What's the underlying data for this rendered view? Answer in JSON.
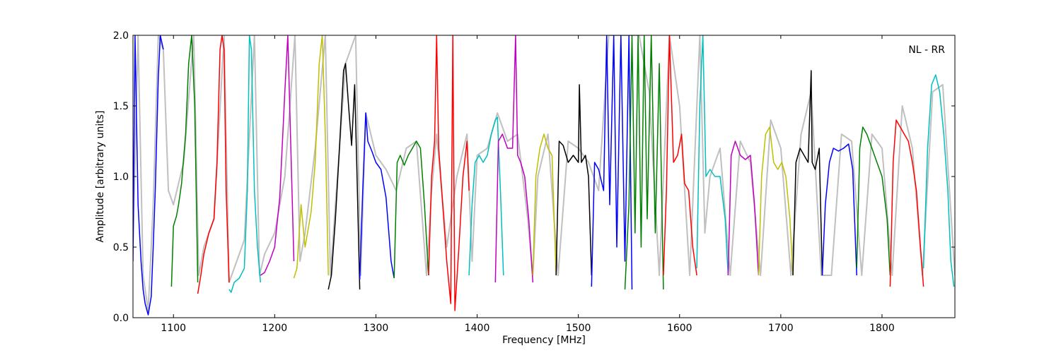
{
  "chart_data": {
    "type": "line",
    "title": "",
    "xlabel": "Frequency [MHz]",
    "ylabel": "Amplitude [arbitrary units]",
    "xlim": [
      1060,
      1872
    ],
    "ylim": [
      0,
      2.0
    ],
    "xticks": [
      1100,
      1200,
      1300,
      1400,
      1500,
      1600,
      1700,
      1800
    ],
    "xtick_labels": [
      "1100",
      "1200",
      "1300",
      "1400",
      "1500",
      "1600",
      "1700",
      "1800"
    ],
    "yticks": [
      0.0,
      0.5,
      1.0,
      1.5,
      2.0
    ],
    "ytick_labels": [
      "0.0",
      "0.5",
      "1.0",
      "1.5",
      "2.0"
    ],
    "grid": false,
    "annotation": "NL - RR",
    "background_color": "#c0c0c0",
    "background": {
      "x": [
        1060,
        1065,
        1070,
        1075,
        1080,
        1085,
        1090,
        1095,
        1100,
        1110,
        1120,
        1125,
        1130,
        1140,
        1150,
        1155,
        1160,
        1170,
        1180,
        1185,
        1190,
        1200,
        1210,
        1220,
        1225,
        1230,
        1240,
        1250,
        1255,
        1260,
        1270,
        1280,
        1285,
        1290,
        1300,
        1310,
        1320,
        1330,
        1340,
        1350,
        1355,
        1360,
        1370,
        1380,
        1390,
        1395,
        1400,
        1410,
        1420,
        1430,
        1440,
        1450,
        1455,
        1460,
        1470,
        1480,
        1490,
        1500,
        1510,
        1520,
        1530,
        1540,
        1550,
        1560,
        1570,
        1580,
        1590,
        1600,
        1610,
        1620,
        1625,
        1630,
        1640,
        1650,
        1660,
        1670,
        1680,
        1690,
        1700,
        1710,
        1720,
        1730,
        1740,
        1750,
        1760,
        1770,
        1780,
        1790,
        1800,
        1810,
        1820,
        1830,
        1840,
        1850,
        1860,
        1872
      ],
      "y": [
        0.5,
        2.0,
        0.3,
        0.05,
        0.8,
        2.0,
        1.9,
        0.9,
        0.8,
        1.1,
        2.0,
        0.3,
        0.5,
        0.7,
        2.0,
        0.25,
        0.35,
        0.55,
        2.0,
        0.3,
        0.45,
        0.6,
        1.0,
        2.0,
        0.4,
        0.6,
        1.2,
        2.0,
        0.3,
        0.8,
        1.8,
        2.0,
        0.3,
        1.45,
        1.15,
        1.05,
        0.9,
        1.2,
        1.25,
        0.3,
        0.9,
        1.3,
        0.5,
        1.0,
        1.3,
        0.4,
        1.15,
        1.2,
        1.45,
        1.25,
        1.3,
        0.7,
        0.3,
        1.0,
        1.3,
        0.3,
        1.25,
        1.2,
        1.1,
        0.9,
        2.0,
        2.0,
        2.0,
        2.0,
        1.6,
        0.3,
        2.0,
        1.5,
        0.3,
        2.0,
        0.6,
        1.0,
        1.2,
        0.3,
        1.25,
        1.1,
        0.3,
        1.4,
        1.2,
        0.3,
        1.3,
        1.6,
        0.3,
        0.3,
        1.3,
        1.25,
        0.3,
        1.3,
        1.2,
        0.3,
        1.5,
        1.2,
        0.3,
        1.6,
        1.65,
        0.3
      ]
    },
    "series": [
      {
        "color": "#0000ff",
        "x": [
          1060,
          1062,
          1065,
          1068,
          1070,
          1072,
          1075,
          1078,
          1080,
          1082,
          1085,
          1087,
          1090
        ],
        "y": [
          0.4,
          2.0,
          0.8,
          0.4,
          0.2,
          0.1,
          0.02,
          0.15,
          0.5,
          0.9,
          1.7,
          2.0,
          1.9
        ]
      },
      {
        "color": "#008000",
        "x": [
          1098,
          1100,
          1103,
          1105,
          1108,
          1112,
          1115,
          1118,
          1121,
          1124
        ],
        "y": [
          0.22,
          0.65,
          0.72,
          0.8,
          0.95,
          1.3,
          1.8,
          2.0,
          1.5,
          0.25
        ]
      },
      {
        "color": "#ff0000",
        "x": [
          1124,
          1127,
          1130,
          1135,
          1140,
          1143,
          1146,
          1148,
          1150,
          1152,
          1155
        ],
        "y": [
          0.17,
          0.3,
          0.45,
          0.6,
          0.7,
          1.1,
          1.9,
          2.0,
          1.9,
          0.9,
          0.25
        ]
      },
      {
        "color": "#00bfbf",
        "x": [
          1155,
          1157,
          1160,
          1165,
          1170,
          1173,
          1175,
          1177,
          1180,
          1183,
          1186
        ],
        "y": [
          0.2,
          0.18,
          0.25,
          0.28,
          0.35,
          0.9,
          2.0,
          1.9,
          0.9,
          0.5,
          0.25
        ]
      },
      {
        "color": "#bf00bf",
        "x": [
          1186,
          1190,
          1195,
          1200,
          1205,
          1210,
          1213,
          1216,
          1219
        ],
        "y": [
          0.3,
          0.32,
          0.4,
          0.5,
          0.85,
          1.6,
          2.0,
          1.2,
          0.4
        ]
      },
      {
        "color": "#bfbf00",
        "x": [
          1219,
          1222,
          1226,
          1230,
          1236,
          1240,
          1244,
          1247,
          1250,
          1253
        ],
        "y": [
          0.28,
          0.35,
          0.8,
          0.5,
          0.75,
          1.1,
          1.8,
          2.0,
          1.3,
          0.3
        ]
      },
      {
        "color": "#000000",
        "x": [
          1253,
          1256,
          1260,
          1264,
          1268,
          1270,
          1273,
          1276,
          1279,
          1281,
          1284
        ],
        "y": [
          0.2,
          0.3,
          0.7,
          1.2,
          1.75,
          1.8,
          1.5,
          1.22,
          1.65,
          1.1,
          0.2
        ]
      },
      {
        "color": "#0000ff",
        "x": [
          1284,
          1287,
          1290,
          1292,
          1296,
          1300,
          1305,
          1310,
          1315,
          1318
        ],
        "y": [
          0.27,
          0.9,
          1.45,
          1.25,
          1.18,
          1.1,
          1.05,
          0.85,
          0.4,
          0.28
        ]
      },
      {
        "color": "#008000",
        "x": [
          1318,
          1321,
          1324,
          1328,
          1332,
          1336,
          1340,
          1344,
          1348,
          1352
        ],
        "y": [
          0.28,
          1.1,
          1.15,
          1.08,
          1.15,
          1.2,
          1.25,
          1.2,
          0.8,
          0.3
        ]
      },
      {
        "color": "#ff0000",
        "x": [
          1352,
          1355,
          1358,
          1360,
          1362,
          1366,
          1370,
          1374,
          1376,
          1378,
          1382,
          1386,
          1390,
          1392
        ],
        "y": [
          0.3,
          1.0,
          1.25,
          2.0,
          1.2,
          0.8,
          0.4,
          0.1,
          2.0,
          0.05,
          0.5,
          1.0,
          1.25,
          0.9
        ]
      },
      {
        "color": "#00bfbf",
        "x": [
          1392,
          1395,
          1398,
          1402,
          1406,
          1410,
          1414,
          1418,
          1420,
          1423,
          1426
        ],
        "y": [
          0.3,
          0.8,
          1.1,
          1.15,
          1.1,
          1.15,
          1.3,
          1.4,
          1.42,
          0.9,
          0.3
        ]
      },
      {
        "color": "#bf00bf",
        "x": [
          1418,
          1421,
          1425,
          1430,
          1435,
          1438,
          1440,
          1443,
          1447,
          1451,
          1455
        ],
        "y": [
          0.25,
          1.25,
          1.3,
          1.2,
          1.2,
          2.0,
          1.15,
          1.1,
          1.0,
          0.7,
          0.25
        ]
      },
      {
        "color": "#bfbf00",
        "x": [
          1455,
          1458,
          1462,
          1466,
          1470,
          1474,
          1478
        ],
        "y": [
          0.3,
          1.0,
          1.2,
          1.3,
          1.2,
          1.15,
          0.3
        ]
      },
      {
        "color": "#000000",
        "x": [
          1478,
          1481,
          1485,
          1490,
          1495,
          1500,
          1501,
          1503,
          1507,
          1510,
          1513
        ],
        "y": [
          0.3,
          1.25,
          1.22,
          1.1,
          1.15,
          1.1,
          1.65,
          1.1,
          1.15,
          1.0,
          0.3
        ]
      },
      {
        "color": "#0000ff",
        "x": [
          1513,
          1516,
          1520,
          1525,
          1528,
          1531,
          1535,
          1538,
          1542,
          1546,
          1550,
          1553
        ],
        "y": [
          0.22,
          1.1,
          1.05,
          0.9,
          2.0,
          0.8,
          2.0,
          0.5,
          2.0,
          0.4,
          2.0,
          0.2
        ]
      },
      {
        "color": "#008000",
        "x": [
          1546,
          1550,
          1553,
          1556,
          1559,
          1562,
          1565,
          1568,
          1572,
          1576,
          1580,
          1584
        ],
        "y": [
          0.2,
          0.8,
          2.0,
          0.6,
          2.0,
          0.5,
          2.0,
          0.7,
          2.0,
          0.6,
          1.8,
          0.2
        ]
      },
      {
        "color": "#ff0000",
        "x": [
          1584,
          1587,
          1590,
          1594,
          1598,
          1602,
          1605,
          1609,
          1613,
          1617
        ],
        "y": [
          0.3,
          0.9,
          2.0,
          1.1,
          1.15,
          1.3,
          0.95,
          0.9,
          0.5,
          0.3
        ]
      },
      {
        "color": "#00bfbf",
        "x": [
          1617,
          1620,
          1623,
          1626,
          1630,
          1635,
          1640,
          1645,
          1648
        ],
        "y": [
          0.35,
          1.5,
          2.0,
          1.0,
          1.05,
          1.0,
          1.0,
          0.7,
          0.3
        ]
      },
      {
        "color": "#bf00bf",
        "x": [
          1648,
          1651,
          1655,
          1660,
          1665,
          1670,
          1674,
          1678
        ],
        "y": [
          0.3,
          1.15,
          1.25,
          1.15,
          1.12,
          1.15,
          0.8,
          0.3
        ]
      },
      {
        "color": "#bfbf00",
        "x": [
          1678,
          1681,
          1685,
          1689,
          1693,
          1697,
          1701,
          1705,
          1709,
          1712
        ],
        "y": [
          0.3,
          1.0,
          1.3,
          1.35,
          1.1,
          1.05,
          1.1,
          1.0,
          0.7,
          0.3
        ]
      },
      {
        "color": "#000000",
        "x": [
          1712,
          1715,
          1719,
          1723,
          1727,
          1730,
          1731,
          1734,
          1738,
          1741
        ],
        "y": [
          0.3,
          1.1,
          1.2,
          1.15,
          1.1,
          1.75,
          1.1,
          1.05,
          1.2,
          0.3
        ]
      },
      {
        "color": "#0000ff",
        "x": [
          1741,
          1744,
          1748,
          1752,
          1757,
          1762,
          1767,
          1771,
          1775
        ],
        "y": [
          0.3,
          0.8,
          1.1,
          1.2,
          1.18,
          1.2,
          1.23,
          1.05,
          0.3
        ]
      },
      {
        "color": "#008000",
        "x": [
          1775,
          1778,
          1781,
          1785,
          1790,
          1795,
          1800,
          1805,
          1808
        ],
        "y": [
          0.35,
          1.2,
          1.35,
          1.3,
          1.2,
          1.1,
          1.0,
          0.7,
          0.3
        ]
      },
      {
        "color": "#ff0000",
        "x": [
          1808,
          1811,
          1814,
          1818,
          1822,
          1826,
          1830,
          1834,
          1838,
          1841
        ],
        "y": [
          0.22,
          1.1,
          1.4,
          1.35,
          1.3,
          1.25,
          1.1,
          0.9,
          0.5,
          0.22
        ]
      },
      {
        "color": "#00bfbf",
        "x": [
          1841,
          1845,
          1849,
          1853,
          1857,
          1861,
          1865,
          1868,
          1871
        ],
        "y": [
          0.35,
          1.2,
          1.65,
          1.72,
          1.6,
          1.3,
          0.9,
          0.4,
          0.22
        ]
      }
    ]
  }
}
